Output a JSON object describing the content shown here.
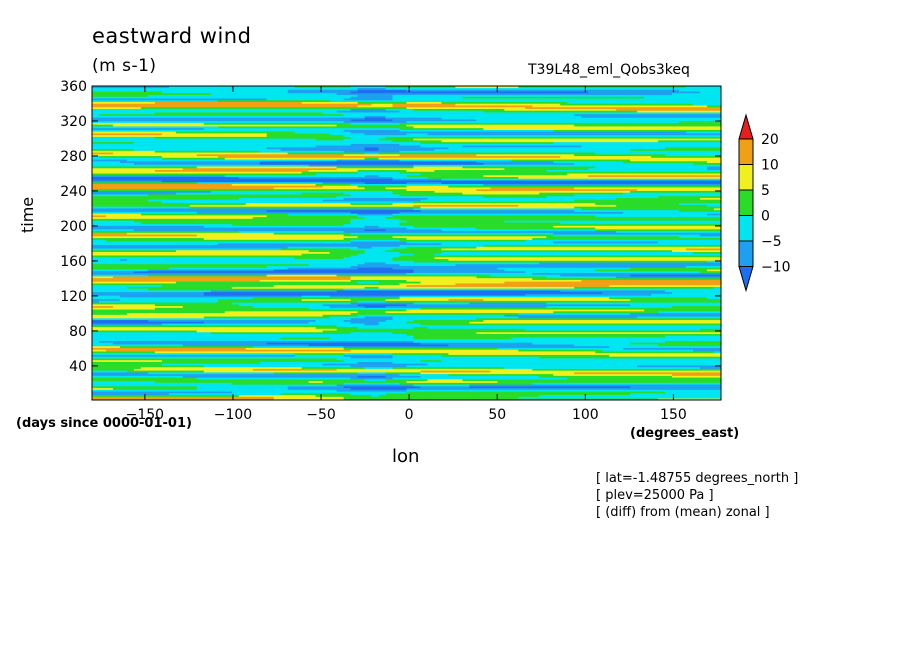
{
  "title": "eastward wind",
  "units": "(m s-1)",
  "run_label": "T39L48_eml_Qobs3keq",
  "notes": [
    "[ lat=-1.48755 degrees_north ]",
    "[ plev=25000 Pa ]",
    "[ (diff) from (mean) zonal ]"
  ],
  "chart_data": {
    "type": "heatmap",
    "title": "eastward wind",
    "subtitle": "(m s-1)",
    "xlabel": "lon",
    "ylabel": "time",
    "x_units": "(degrees_east)",
    "y_units": "(days since 0000-01-01)",
    "xlim": [
      -180,
      177
    ],
    "ylim": [
      1,
      360
    ],
    "x_ticks": [
      -150,
      -100,
      -50,
      0,
      50,
      100,
      150
    ],
    "x_tick_labels": [
      "−150",
      "−100",
      "−50",
      "0",
      "50",
      "100",
      "150"
    ],
    "y_ticks": [
      40,
      80,
      120,
      160,
      200,
      240,
      280,
      320,
      360
    ],
    "y_tick_labels": [
      "40",
      "80",
      "120",
      "160",
      "200",
      "240",
      "280",
      "320",
      "360"
    ],
    "colorbar": {
      "levels": [
        -10,
        -5,
        0,
        5,
        10,
        20
      ],
      "level_labels": [
        "−10",
        "−5",
        "0",
        "5",
        "10",
        "20"
      ],
      "colors": [
        "#1e6ef0",
        "#1ea0f0",
        "#00e6f0",
        "#28dc28",
        "#f0f01e",
        "#f0a014",
        "#e61e1e"
      ],
      "extend": "both"
    },
    "grid": false
  }
}
